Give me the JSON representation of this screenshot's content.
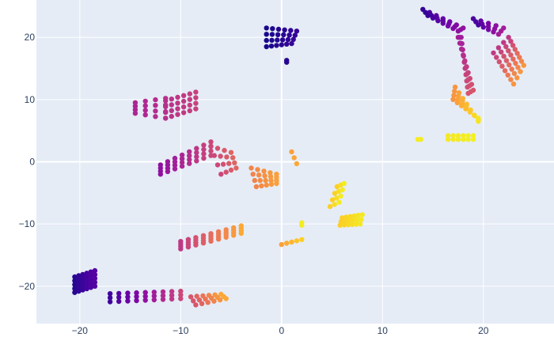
{
  "chart_data": {
    "type": "scatter",
    "title": "",
    "xlabel": "",
    "ylabel": "",
    "xlim": [
      -24.3,
      27
    ],
    "ylim": [
      -26,
      26
    ],
    "x_ticks": [
      -20,
      -10,
      0,
      10,
      20
    ],
    "y_ticks": [
      -20,
      -10,
      0,
      10,
      20
    ],
    "grid": true,
    "legend": "none",
    "colorscale": "plasma",
    "colors": {
      "plot_bg": "#e5ecf6",
      "grid": "#ffffff",
      "tick_text": "#2a3f5f"
    },
    "clusters": [
      {
        "x": [
          -20.5,
          -18.5
        ],
        "y": [
          -18.5,
          -17.5
        ],
        "x2": [
          -20.5,
          -18.5
        ],
        "y2": [
          -21.0,
          -20.0
        ],
        "rows": 5,
        "cols": 6,
        "c": [
          0.05,
          0.15
        ]
      },
      {
        "x": [
          -17.0,
          -10.0
        ],
        "y": [
          -21.2,
          -20.8
        ],
        "x2": [
          -17.0,
          -10.0
        ],
        "y2": [
          -22.5,
          -22.0
        ],
        "rows": 3,
        "cols": 9,
        "c": [
          0.1,
          0.5
        ]
      },
      {
        "x": [
          -9.0,
          -6.0
        ],
        "y": [
          -21.7,
          -21.3
        ],
        "x2": [
          -8.5,
          -5.5
        ],
        "y2": [
          -23.0,
          -22.0
        ],
        "rows": 3,
        "cols": 6,
        "c": [
          0.55,
          0.8
        ]
      },
      {
        "x": [
          -10.0,
          -4.0
        ],
        "y": [
          -12.8,
          -10.3
        ],
        "x2": [
          -10.0,
          -4.0
        ],
        "y2": [
          -14.0,
          -11.5
        ],
        "rows": 4,
        "cols": 9,
        "c": [
          0.45,
          0.8
        ]
      },
      {
        "x": [
          -11.5,
          -8.5
        ],
        "y": [
          9.8,
          11.2
        ],
        "x2": [
          -11.5,
          -8.5
        ],
        "y2": [
          7.0,
          8.5
        ],
        "rows": 4,
        "cols": 6,
        "c": [
          0.42,
          0.48
        ]
      },
      {
        "x": [
          -14.5,
          -11.5
        ],
        "y": [
          9.5,
          10.2
        ],
        "x2": [
          -14.5,
          -11.5
        ],
        "y2": [
          7.8,
          7.0
        ],
        "rows": 4,
        "cols": 4,
        "c": [
          0.38,
          0.42
        ]
      },
      {
        "x": [
          -12.0,
          -7.0
        ],
        "y": [
          -0.5,
          3.2
        ],
        "x2": [
          -12.0,
          -7.0
        ],
        "y2": [
          -2.0,
          1.0
        ],
        "rows": 4,
        "cols": 8,
        "c": [
          0.3,
          0.5
        ]
      },
      {
        "x": [
          -7.0,
          -5.0
        ],
        "y": [
          2.5,
          1.5
        ],
        "x2": [
          -6.0,
          -4.5
        ],
        "y2": [
          -2.0,
          -1.0
        ],
        "rows": 4,
        "cols": 4,
        "c": [
          0.5,
          0.6
        ]
      },
      {
        "x": [
          -3.0,
          -0.5
        ],
        "y": [
          -1.0,
          -2.0
        ],
        "x2": [
          -2.5,
          -0.5
        ],
        "y2": [
          -4.0,
          -3.5
        ],
        "rows": 4,
        "cols": 5,
        "c": [
          0.7,
          0.78
        ]
      },
      {
        "x": [
          -1.5,
          1.5
        ],
        "y": [
          21.5,
          21.0
        ],
        "x2": [
          -1.5,
          1.0
        ],
        "y2": [
          18.5,
          19.0
        ],
        "rows": 4,
        "cols": 6,
        "c": [
          0.02,
          0.08
        ]
      },
      {
        "x": [
          0.5,
          0.5
        ],
        "y": [
          16.3,
          16.3
        ],
        "x2": [
          0.5,
          0.5
        ],
        "y2": [
          16.0,
          16.0
        ],
        "rows": 2,
        "cols": 1,
        "c": [
          0.05,
          0.05
        ]
      },
      {
        "x": [
          1.0,
          1.5
        ],
        "y": [
          1.6,
          -0.3
        ],
        "x2": [
          1.0,
          1.5
        ],
        "y2": [
          1.6,
          -0.5
        ],
        "rows": 1,
        "cols": 3,
        "c": [
          0.78,
          0.8
        ]
      },
      {
        "x": [
          0.0,
          2.0
        ],
        "y": [
          -13.3,
          -12.5
        ],
        "x2": [
          0.0,
          2.0
        ],
        "y2": [
          -13.3,
          -12.5
        ],
        "rows": 1,
        "cols": 5,
        "c": [
          0.78,
          0.9
        ]
      },
      {
        "x": [
          2.0,
          2.0
        ],
        "y": [
          -9.8,
          -9.8
        ],
        "x2": [
          2.0,
          2.0
        ],
        "y2": [
          -10.2,
          -10.2
        ],
        "rows": 2,
        "cols": 1,
        "c": [
          0.97,
          0.97
        ]
      },
      {
        "x": [
          5.5,
          6.2
        ],
        "y": [
          -4.0,
          -3.5
        ],
        "x2": [
          4.8,
          5.7
        ],
        "y2": [
          -7.2,
          -6.5
        ],
        "rows": 4,
        "cols": 3,
        "c": [
          0.9,
          0.97
        ]
      },
      {
        "x": [
          6.0,
          8.0
        ],
        "y": [
          -9.0,
          -8.5
        ],
        "x2": [
          5.8,
          7.8
        ],
        "y2": [
          -10.2,
          -10.0
        ],
        "rows": 3,
        "cols": 6,
        "c": [
          0.9,
          0.96
        ]
      },
      {
        "x": [
          13.5,
          13.8
        ],
        "y": [
          3.6,
          3.6
        ],
        "x2": [
          13.5,
          13.8
        ],
        "y2": [
          3.6,
          3.6
        ],
        "rows": 1,
        "cols": 2,
        "c": [
          0.97,
          0.97
        ]
      },
      {
        "x": [
          16.5,
          19.0
        ],
        "y": [
          4.2,
          4.2
        ],
        "x2": [
          16.5,
          19.0
        ],
        "y2": [
          3.6,
          3.6
        ],
        "rows": 2,
        "cols": 6,
        "c": [
          0.96,
          0.98
        ]
      },
      {
        "x": [
          14.0,
          18.0
        ],
        "y": [
          24.5,
          21.5
        ],
        "x2": [
          14.5,
          17.5
        ],
        "y2": [
          23.5,
          21.0
        ],
        "rows": 3,
        "cols": 7,
        "c": [
          0.08,
          0.3
        ]
      },
      {
        "x": [
          17.8,
          18.5
        ],
        "y": [
          20.0,
          11.0
        ],
        "x2": [
          17.5,
          19.0
        ],
        "y2": [
          20.0,
          11.5
        ],
        "rows": 3,
        "cols": 10,
        "c": [
          0.35,
          0.55
        ]
      },
      {
        "x": [
          17.2,
          19.5
        ],
        "y": [
          12.0,
          6.5
        ],
        "x2": [
          17.0,
          19.5
        ],
        "y2": [
          10.0,
          7.0
        ],
        "rows": 4,
        "cols": 7,
        "c": [
          0.75,
          0.95
        ]
      },
      {
        "x": [
          19.0,
          22.0
        ],
        "y": [
          23.0,
          21.5
        ],
        "x2": [
          19.5,
          21.5
        ],
        "y2": [
          22.0,
          20.5
        ],
        "rows": 3,
        "cols": 5,
        "c": [
          0.12,
          0.35
        ]
      },
      {
        "x": [
          22.5,
          24.0
        ],
        "y": [
          20.0,
          15.5
        ],
        "x2": [
          21.0,
          23.0
        ],
        "y2": [
          17.5,
          12.5
        ],
        "rows": 4,
        "cols": 8,
        "c": [
          0.45,
          0.75
        ]
      }
    ]
  }
}
